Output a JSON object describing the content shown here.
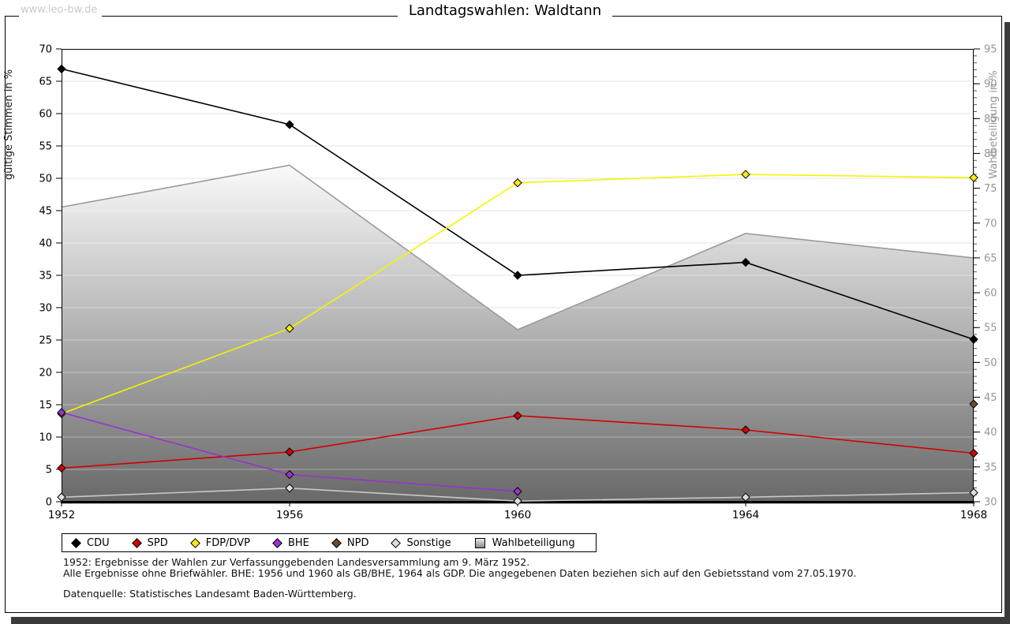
{
  "watermark": "www.leo-bw.de",
  "title": "Landtagswahlen: Waldtann",
  "chart_data": {
    "type": "line",
    "title": "Landtagswahlen: Waldtann",
    "x": [
      "1952",
      "1956",
      "1960",
      "1964",
      "1968"
    ],
    "left_axis": {
      "label": "gültige Stimmen in %",
      "min": 0,
      "max": 70,
      "tick_step": 5
    },
    "right_axis": {
      "label": "Wahlbeteiligung in %",
      "min": 30,
      "max": 95,
      "tick_step": 5,
      "minor_step": 1
    },
    "grid": true,
    "legend_position": "bottom",
    "series": [
      {
        "name": "CDU",
        "axis": "left",
        "type": "line",
        "color": "#000000",
        "marker_color": "#000000",
        "values": [
          66.9,
          58.3,
          35.0,
          37.0,
          25.1
        ]
      },
      {
        "name": "SPD",
        "axis": "left",
        "type": "line",
        "color": "#d40000",
        "marker_color": "#d40000",
        "values": [
          5.2,
          7.7,
          13.3,
          11.1,
          7.5
        ]
      },
      {
        "name": "FDP/DVP",
        "axis": "left",
        "type": "line",
        "color": "#f5f500",
        "marker_color": "#ffe81a",
        "values": [
          13.6,
          26.8,
          49.3,
          50.6,
          50.1
        ]
      },
      {
        "name": "BHE",
        "axis": "left",
        "type": "line",
        "color": "#9932cc",
        "marker_color": "#9932cc",
        "values": [
          13.8,
          4.2,
          1.6,
          null,
          null
        ]
      },
      {
        "name": "NPD",
        "axis": "left",
        "type": "line",
        "color": "#6e4a2d",
        "marker_color": "#6e4a2d",
        "values": [
          null,
          null,
          null,
          null,
          15.1
        ]
      },
      {
        "name": "Sonstige",
        "axis": "left",
        "type": "line",
        "color": "#c8c8c8",
        "marker_color": "#dcdcdc",
        "values": [
          0.7,
          2.1,
          0.1,
          0.7,
          1.4
        ]
      },
      {
        "name": "Wahlbeteiligung",
        "axis": "right",
        "type": "area",
        "color": "#9a9a9a",
        "values": [
          72.3,
          78.3,
          54.7,
          68.5,
          65.0
        ]
      }
    ]
  },
  "colors": {
    "grid": "#e3e3e3",
    "grid_on_area": "rgba(255,255,255,0.38)",
    "area_top": "#fafafa",
    "area_bottom": "#696969",
    "area_edge": "#9a9a9a",
    "left_axis_text": "#000000",
    "right_axis_text": "#959595",
    "watermark": "#c9c9c9"
  },
  "footnotes": {
    "line1": "1952: Ergebnisse der Wahlen zur Verfassunggebenden Landesversammlung am 9. März 1952.",
    "line2": "Alle Ergebnisse ohne Briefwähler. BHE: 1956 und 1960 als GB/BHE, 1964 als GDP. Die angegebenen Daten beziehen sich auf den Gebietsstand vom 27.05.1970.",
    "source": "Datenquelle: Statistisches Landesamt Baden-Württemberg."
  }
}
